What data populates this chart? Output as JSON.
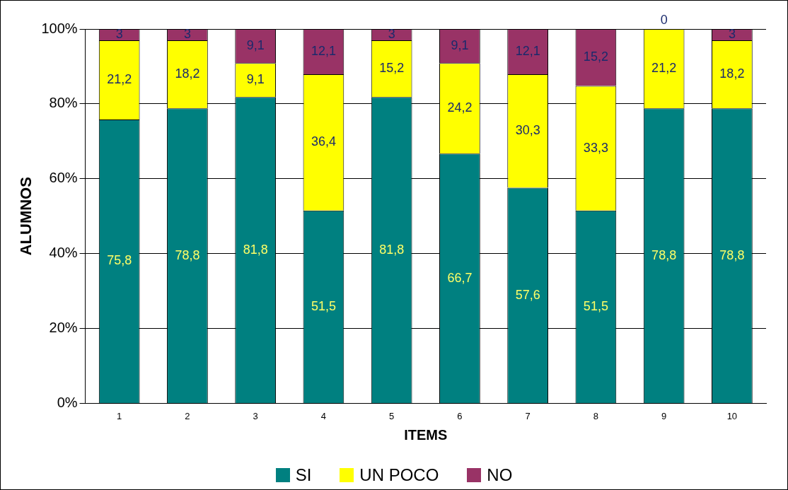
{
  "chart_data": {
    "type": "bar",
    "stacked": true,
    "xlabel": "ITEMS",
    "ylabel": "ALUMNOS",
    "categories": [
      "1",
      "2",
      "3",
      "4",
      "5",
      "6",
      "7",
      "8",
      "9",
      "10"
    ],
    "ylim": [
      0,
      100
    ],
    "yticks": [
      {
        "value": 0,
        "label": "0%"
      },
      {
        "value": 20,
        "label": "20%"
      },
      {
        "value": 40,
        "label": "40%"
      },
      {
        "value": 60,
        "label": "60%"
      },
      {
        "value": 80,
        "label": "80%"
      },
      {
        "value": 100,
        "label": "100%"
      }
    ],
    "grid": "y",
    "legend": "bottom",
    "series": [
      {
        "name": "SI",
        "color": "#008080",
        "values": [
          75.8,
          78.8,
          81.8,
          51.5,
          81.8,
          66.7,
          57.6,
          51.5,
          78.8,
          78.8
        ],
        "value_labels": [
          "75,8",
          "78,8",
          "81,8",
          "51,5",
          "81,8",
          "66,7",
          "57,6",
          "51,5",
          "78,8",
          "78,8"
        ]
      },
      {
        "name": "UN POCO",
        "color": "#ffff00",
        "values": [
          21.2,
          18.2,
          9.1,
          36.4,
          15.2,
          24.2,
          30.3,
          33.3,
          21.2,
          18.2
        ],
        "value_labels": [
          "21,2",
          "18,2",
          "9,1",
          "36,4",
          "15,2",
          "24,2",
          "30,3",
          "33,3",
          "21,2",
          "18,2"
        ]
      },
      {
        "name": "NO",
        "color": "#993366",
        "values": [
          3,
          3,
          9.1,
          12.1,
          3,
          9.1,
          12.1,
          15.2,
          0,
          3
        ],
        "value_labels": [
          "3",
          "3",
          "9,1",
          "12,1",
          "3",
          "9,1",
          "12,1",
          "15,2",
          "0",
          "3"
        ]
      }
    ]
  }
}
